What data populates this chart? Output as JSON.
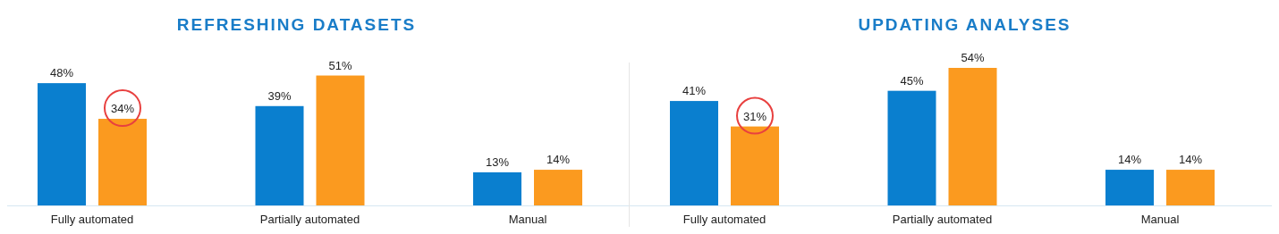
{
  "chart_data": [
    {
      "type": "bar",
      "title": "REFRESHING DATASETS",
      "categories": [
        "Fully automated",
        "Partially automated",
        "Manual"
      ],
      "series": [
        {
          "color": "#0a7fcf",
          "values": [
            48,
            39,
            13
          ],
          "value_labels": [
            "48%",
            "39%",
            "13%"
          ]
        },
        {
          "color": "#fb9a1f",
          "values": [
            34,
            51,
            14
          ],
          "value_labels": [
            "34%",
            "51%",
            "14%"
          ]
        }
      ]
    },
    {
      "type": "bar",
      "title": "UPDATING ANALYSES",
      "categories": [
        "Fully automated",
        "Partially automated",
        "Manual"
      ],
      "series": [
        {
          "color": "#0a7fcf",
          "values": [
            41,
            45,
            14
          ],
          "value_labels": [
            "41%",
            "45%",
            "14%"
          ]
        },
        {
          "color": "#fb9a1f",
          "values": [
            31,
            54,
            14
          ],
          "value_labels": [
            "31%",
            "54%",
            "14%"
          ]
        }
      ]
    }
  ]
}
